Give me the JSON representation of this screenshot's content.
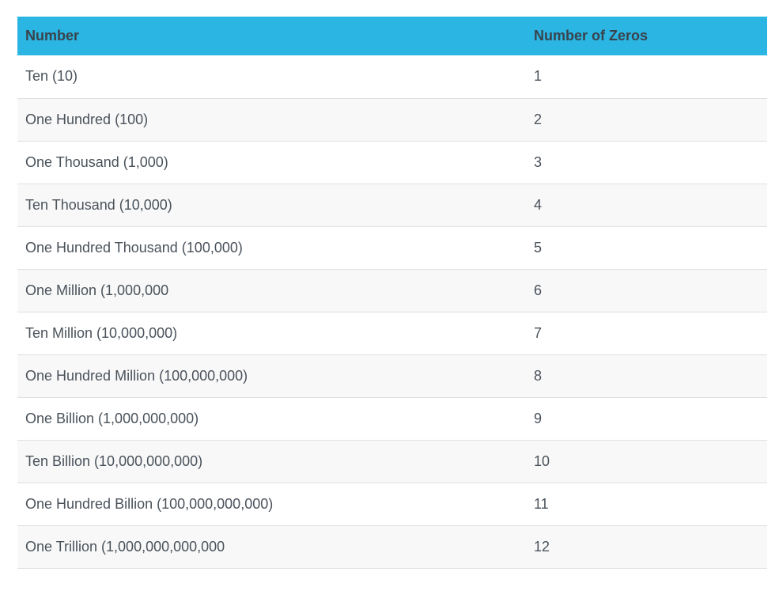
{
  "table": {
    "columns": [
      {
        "label": "Number"
      },
      {
        "label": "Number of Zeros"
      }
    ],
    "rows": [
      {
        "number": "Ten (10)",
        "zeros": "1"
      },
      {
        "number": "One Hundred (100)",
        "zeros": "2"
      },
      {
        "number": "One Thousand (1,000)",
        "zeros": "3"
      },
      {
        "number": "Ten Thousand (10,000)",
        "zeros": "4"
      },
      {
        "number": "One Hundred Thousand (100,000)",
        "zeros": "5"
      },
      {
        "number": "One Million (1,000,000",
        "zeros": "6"
      },
      {
        "number": "Ten Million (10,000,000)",
        "zeros": "7"
      },
      {
        "number": "One Hundred Million (100,000,000)",
        "zeros": "8"
      },
      {
        "number": "One Billion (1,000,000,000)",
        "zeros": "9"
      },
      {
        "number": "Ten Billion (10,000,000,000)",
        "zeros": "10"
      },
      {
        "number": "One Hundred Billion (100,000,000,000)",
        "zeros": "11"
      },
      {
        "number": "One Trillion (1,000,000,000,000",
        "zeros": "12"
      }
    ]
  },
  "colors": {
    "header_bg": "#2ab5e2",
    "header_text": "#39434d",
    "body_text": "#4a525b",
    "alt_row_bg": "#f8f8f8",
    "row_border": "#e0e0e0",
    "page_bg": "#ffffff"
  },
  "chart_data": {
    "type": "table",
    "columns": [
      "Number",
      "Number of Zeros"
    ],
    "rows": [
      [
        "Ten (10)",
        1
      ],
      [
        "One Hundred (100)",
        2
      ],
      [
        "One Thousand (1,000)",
        3
      ],
      [
        "Ten Thousand (10,000)",
        4
      ],
      [
        "One Hundred Thousand (100,000)",
        5
      ],
      [
        "One Million (1,000,000",
        6
      ],
      [
        "Ten Million (10,000,000)",
        7
      ],
      [
        "One Hundred Million (100,000,000)",
        8
      ],
      [
        "One Billion (1,000,000,000)",
        9
      ],
      [
        "Ten Billion (10,000,000,000)",
        10
      ],
      [
        "One Hundred Billion (100,000,000,000)",
        11
      ],
      [
        "One Trillion (1,000,000,000,000",
        12
      ]
    ],
    "layout": {
      "header_background": "#2ab5e2",
      "zebra_striping": true,
      "grid": "horizontal-only"
    }
  }
}
